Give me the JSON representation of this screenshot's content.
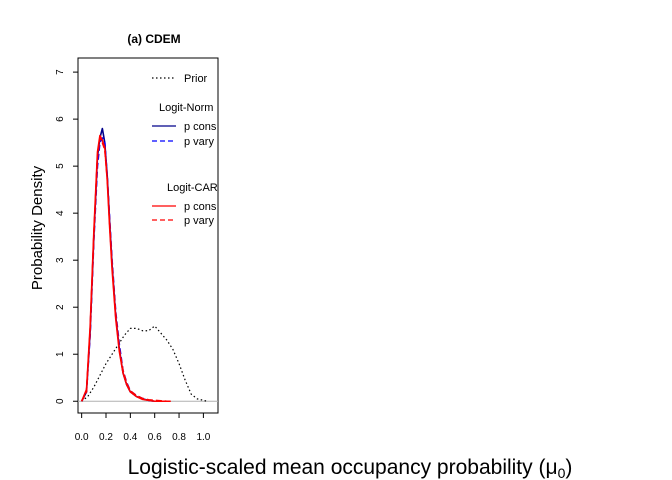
{
  "chart_data": {
    "type": "line",
    "title": "(a) CDEM",
    "xlabel": "Logistic-scaled mean occupancy probability (",
    "xlabel_symbol": "μ",
    "xlabel_subscript": "0",
    "xlabel_close": ")",
    "ylabel": "Probability Density",
    "xlim": [
      -0.03,
      1.12
    ],
    "ylim": [
      -0.25,
      7.3
    ],
    "x_ticks": [
      0.0,
      0.2,
      0.4,
      0.6,
      0.8,
      1.0
    ],
    "x_tick_labels": [
      "0.0",
      "0.2",
      "0.4",
      "0.6",
      "0.8",
      "1.0"
    ],
    "y_ticks": [
      0,
      1,
      2,
      3,
      4,
      5,
      6,
      7
    ],
    "y_tick_labels": [
      "0",
      "1",
      "2",
      "3",
      "4",
      "5",
      "6",
      "7"
    ],
    "grid": false,
    "baseline_y": 0,
    "legend": {
      "placement": "top-right",
      "prior_label": "Prior",
      "group1_title": "Logit-Norm",
      "group1_entries": [
        "p cons",
        "p vary"
      ],
      "group2_title": "Logit-CAR",
      "group2_entries": [
        "p cons",
        "p vary"
      ]
    },
    "series": [
      {
        "name": "Prior",
        "color": "#000000",
        "dash": "dotted",
        "x": [
          0.0,
          0.05,
          0.1,
          0.15,
          0.2,
          0.25,
          0.3,
          0.35,
          0.4,
          0.45,
          0.5,
          0.55,
          0.6,
          0.65,
          0.7,
          0.75,
          0.8,
          0.85,
          0.9,
          0.95,
          1.0,
          1.03
        ],
        "y": [
          0.0,
          0.1,
          0.3,
          0.55,
          0.8,
          1.0,
          1.2,
          1.4,
          1.55,
          1.55,
          1.5,
          1.5,
          1.6,
          1.45,
          1.3,
          1.1,
          0.8,
          0.45,
          0.15,
          0.05,
          0.02,
          0.0
        ]
      },
      {
        "name": "Logit-Norm p cons",
        "color": "#00008B",
        "dash": "solid",
        "x": [
          0.0,
          0.04,
          0.07,
          0.1,
          0.13,
          0.15,
          0.17,
          0.19,
          0.21,
          0.23,
          0.25,
          0.28,
          0.31,
          0.34,
          0.37,
          0.4,
          0.45,
          0.5,
          0.55,
          0.6,
          0.65,
          0.7
        ],
        "y": [
          0.0,
          0.2,
          1.5,
          3.5,
          5.2,
          5.6,
          5.8,
          5.5,
          4.8,
          3.8,
          2.9,
          1.8,
          1.1,
          0.6,
          0.35,
          0.2,
          0.1,
          0.05,
          0.02,
          0.0,
          0.0,
          0.0
        ]
      },
      {
        "name": "Logit-Norm p vary",
        "color": "#0000FF",
        "dash": "dashed",
        "x": [
          0.0,
          0.04,
          0.07,
          0.1,
          0.13,
          0.15,
          0.17,
          0.19,
          0.21,
          0.23,
          0.25,
          0.28,
          0.31,
          0.34,
          0.37,
          0.4,
          0.45,
          0.5,
          0.55,
          0.6,
          0.65,
          0.7
        ],
        "y": [
          0.0,
          0.2,
          1.4,
          3.4,
          5.0,
          5.5,
          5.6,
          5.5,
          4.8,
          3.9,
          3.0,
          1.9,
          1.2,
          0.65,
          0.4,
          0.22,
          0.12,
          0.06,
          0.02,
          0.0,
          0.0,
          0.0
        ]
      },
      {
        "name": "Logit-CAR p cons",
        "color": "#FF0000",
        "dash": "solid",
        "x": [
          0.0,
          0.04,
          0.07,
          0.1,
          0.13,
          0.15,
          0.17,
          0.19,
          0.21,
          0.23,
          0.25,
          0.28,
          0.31,
          0.34,
          0.37,
          0.4,
          0.45,
          0.5,
          0.55,
          0.6,
          0.65,
          0.7
        ],
        "y": [
          0.0,
          0.25,
          1.6,
          3.6,
          5.3,
          5.65,
          5.55,
          5.4,
          4.7,
          3.7,
          2.8,
          1.75,
          1.05,
          0.6,
          0.35,
          0.2,
          0.1,
          0.04,
          0.02,
          0.0,
          0.0,
          0.0
        ]
      },
      {
        "name": "Logit-CAR p vary",
        "color": "#FF0000",
        "dash": "dashed",
        "x": [
          0.0,
          0.04,
          0.07,
          0.1,
          0.13,
          0.15,
          0.17,
          0.19,
          0.21,
          0.23,
          0.25,
          0.28,
          0.31,
          0.34,
          0.37,
          0.4,
          0.45,
          0.5,
          0.55,
          0.6,
          0.65,
          0.7,
          0.75
        ],
        "y": [
          0.0,
          0.2,
          1.5,
          3.5,
          5.2,
          5.6,
          5.5,
          5.35,
          4.75,
          3.8,
          2.9,
          1.85,
          1.1,
          0.65,
          0.38,
          0.22,
          0.12,
          0.06,
          0.03,
          0.02,
          0.01,
          0.0,
          0.0
        ]
      }
    ]
  }
}
